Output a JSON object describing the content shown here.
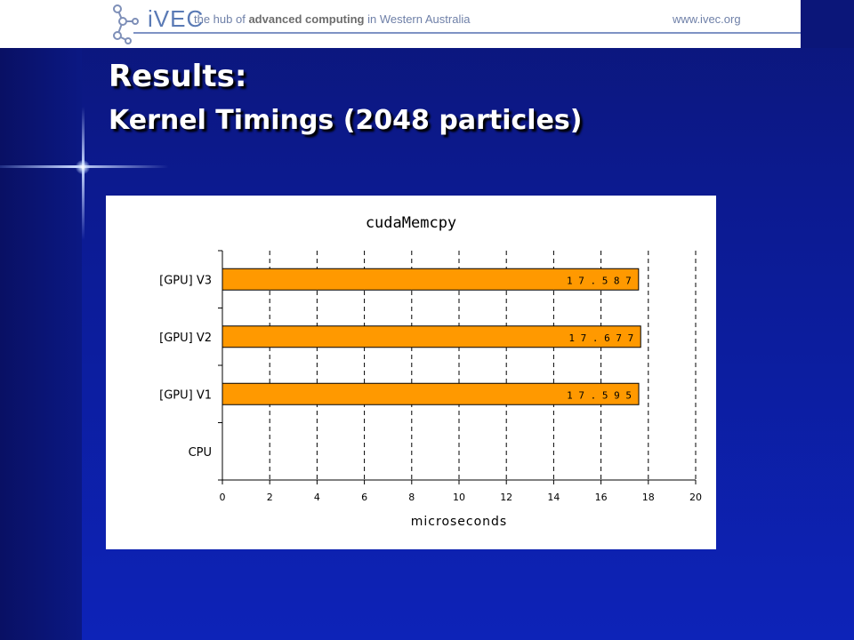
{
  "header": {
    "logo_text": "iVEC",
    "tagline_prefix": "the hub of ",
    "tagline_bold": "advanced computing",
    "tagline_suffix": " in Western Australia",
    "site_url": "www.ivec.org"
  },
  "slide": {
    "title": "Results:",
    "subtitle": "Kernel Timings (2048 particles)"
  },
  "colors": {
    "bar_fill": "#ff9900",
    "bar_stroke": "#000000",
    "background": "#0c1a90",
    "gridline": "#000000"
  },
  "chart_data": {
    "type": "bar",
    "orientation": "horizontal",
    "title": "cudaMemcpy",
    "xlabel": "microseconds",
    "ylabel": "",
    "categories": [
      "[GPU] V3",
      "[GPU] V2",
      "[GPU] V1",
      "CPU"
    ],
    "values": [
      17.587,
      17.677,
      17.595,
      null
    ],
    "value_labels": [
      "17.587",
      "17.677",
      "17.595",
      ""
    ],
    "xlim": [
      0,
      20
    ],
    "xticks": [
      "0",
      "2",
      "4",
      "6",
      "8",
      "10",
      "12",
      "14",
      "16",
      "18",
      "20"
    ],
    "grid": "vertical-dashed",
    "legend": "none"
  }
}
